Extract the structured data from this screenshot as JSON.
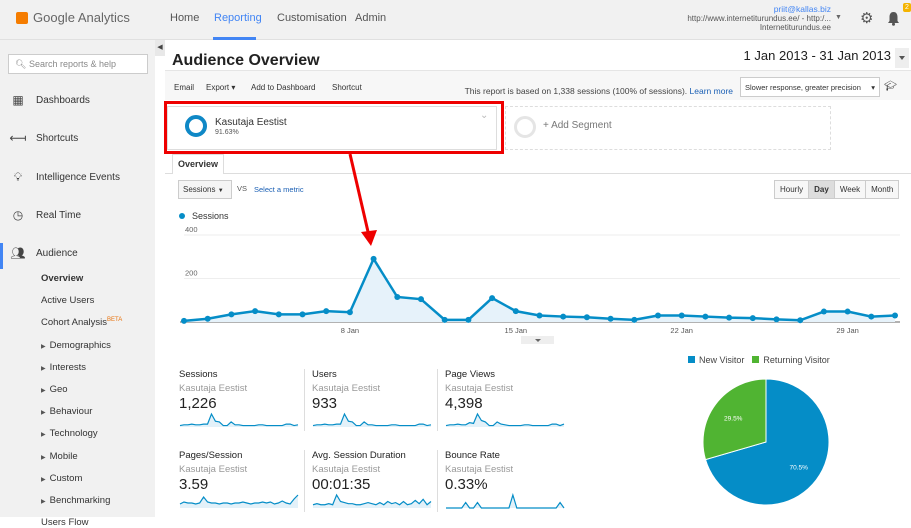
{
  "header": {
    "brand": "Google Analytics",
    "nav": [
      "Home",
      "Reporting",
      "Customisation",
      "Admin"
    ],
    "active_nav": "Reporting",
    "email": "priit@kallas.biz",
    "property": "http://www.internetiturundus.ee/ - http:/...",
    "view": "Internetiturundus.ee",
    "notifications": "2"
  },
  "sidebar": {
    "search_placeholder": "Search reports & help",
    "items": [
      {
        "label": "Dashboards",
        "icon": "grid-icon"
      },
      {
        "label": "Shortcuts",
        "icon": "shortcut-icon"
      },
      {
        "label": "Intelligence Events",
        "icon": "lightbulb-icon"
      },
      {
        "label": "Real Time",
        "icon": "clock-icon"
      },
      {
        "label": "Audience",
        "icon": "people-icon"
      }
    ],
    "audience_sub": [
      {
        "label": "Overview",
        "selected": true
      },
      {
        "label": "Active Users"
      },
      {
        "label": "Cohort Analysis",
        "badge": "BETA"
      },
      {
        "label": "Demographics",
        "expand": true
      },
      {
        "label": "Interests",
        "expand": true
      },
      {
        "label": "Geo",
        "expand": true
      },
      {
        "label": "Behaviour",
        "expand": true
      },
      {
        "label": "Technology",
        "expand": true
      },
      {
        "label": "Mobile",
        "expand": true
      },
      {
        "label": "Custom",
        "expand": true
      },
      {
        "label": "Benchmarking",
        "expand": true
      },
      {
        "label": "Users Flow"
      }
    ]
  },
  "page": {
    "title": "Audience Overview",
    "date_range": "1 Jan 2013 - 31 Jan 2013"
  },
  "toolbar": {
    "email": "Email",
    "export": "Export ▾",
    "add_dashboard": "Add to Dashboard",
    "shortcut": "Shortcut",
    "note": "This report is based on 1,338 sessions (100% of sessions).",
    "learn_more": "Learn more",
    "precision": "Slower response, greater precision"
  },
  "segments": {
    "active": {
      "name": "Kasutaja Eestist",
      "pct": "91.63%"
    },
    "add": "+ Add Segment"
  },
  "tab": "Overview",
  "controls": {
    "metric": "Sessions",
    "vs": "VS",
    "select_metric": "Select a metric",
    "granularity": [
      "Hourly",
      "Day",
      "Week",
      "Month"
    ],
    "active_granularity": "Day"
  },
  "chart_data": [
    {
      "type": "line",
      "series": [
        {
          "name": "Sessions",
          "color": "#058dc7",
          "values": [
            5,
            15,
            35,
            50,
            35,
            35,
            50,
            45,
            290,
            115,
            105,
            10,
            10,
            110,
            50,
            30,
            25,
            22,
            15,
            10,
            30,
            30,
            25,
            20,
            18,
            12,
            8,
            48,
            48,
            25,
            30
          ]
        }
      ],
      "x": [
        "1 Jan",
        "2 Jan",
        "3 Jan",
        "4 Jan",
        "5 Jan",
        "6 Jan",
        "7 Jan",
        "8 Jan",
        "9 Jan",
        "10 Jan",
        "11 Jan",
        "12 Jan",
        "13 Jan",
        "14 Jan",
        "15 Jan",
        "16 Jan",
        "17 Jan",
        "18 Jan",
        "19 Jan",
        "20 Jan",
        "21 Jan",
        "22 Jan",
        "23 Jan",
        "24 Jan",
        "25 Jan",
        "26 Jan",
        "27 Jan",
        "28 Jan",
        "29 Jan",
        "30 Jan",
        "31 Jan"
      ],
      "x_ticks": [
        "8 Jan",
        "15 Jan",
        "22 Jan",
        "29 Jan"
      ],
      "y_ticks": [
        "200",
        "400"
      ],
      "ylim": [
        0,
        400
      ],
      "legend": "top-left",
      "grid": true
    },
    {
      "type": "pie",
      "slices": [
        {
          "name": "New Visitor",
          "value": 70.5,
          "label": "70.5%",
          "color": "#058dc7"
        },
        {
          "name": "Returning Visitor",
          "value": 29.5,
          "label": "29.5%",
          "color": "#50b432"
        }
      ],
      "legend": "top"
    }
  ],
  "metrics": [
    {
      "title": "Sessions",
      "segment": "Kasutaja Eestist",
      "value": "1,226",
      "spark": [
        2,
        3,
        3,
        4,
        3,
        3,
        4,
        4,
        18,
        8,
        7,
        2,
        2,
        7,
        3,
        3,
        2,
        2,
        2,
        2,
        3,
        3,
        2,
        2,
        2,
        2,
        2,
        4,
        4,
        2,
        3
      ]
    },
    {
      "title": "Users",
      "segment": "Kasutaja Eestist",
      "value": "933",
      "spark": [
        2,
        3,
        3,
        4,
        3,
        3,
        4,
        4,
        18,
        8,
        7,
        2,
        2,
        7,
        3,
        3,
        2,
        2,
        2,
        2,
        3,
        3,
        2,
        2,
        2,
        2,
        2,
        4,
        4,
        2,
        3
      ]
    },
    {
      "title": "Page Views",
      "segment": "Kasutaja Eestist",
      "value": "4,398",
      "spark": [
        2,
        3,
        3,
        4,
        3,
        3,
        6,
        5,
        18,
        9,
        7,
        2,
        2,
        7,
        4,
        3,
        2,
        2,
        2,
        2,
        3,
        3,
        2,
        2,
        2,
        2,
        2,
        4,
        4,
        2,
        4
      ]
    },
    {
      "title": "Pages/Session",
      "segment": "Kasutaja Eestist",
      "value": "3.59",
      "spark": [
        4,
        6,
        5,
        5,
        4,
        5,
        11,
        6,
        5,
        5,
        4,
        5,
        5,
        4,
        5,
        5,
        6,
        5,
        4,
        5,
        5,
        6,
        5,
        6,
        4,
        5,
        7,
        5,
        4,
        9,
        13
      ]
    },
    {
      "title": "Avg. Session Duration",
      "segment": "Kasutaja Eestist",
      "value": "00:01:35",
      "spark": [
        3,
        4,
        3,
        3,
        4,
        3,
        12,
        6,
        5,
        4,
        4,
        3,
        3,
        4,
        5,
        4,
        3,
        5,
        3,
        6,
        4,
        5,
        3,
        6,
        3,
        4,
        7,
        4,
        8,
        3,
        6
      ]
    },
    {
      "title": "Bounce Rate",
      "segment": "Kasutaja Eestist",
      "value": "0.33%",
      "spark": [
        0,
        0,
        0,
        0,
        0,
        5,
        0,
        0,
        5,
        0,
        0,
        0,
        0,
        0,
        0,
        0,
        0,
        12,
        0,
        0,
        0,
        0,
        0,
        0,
        0,
        0,
        0,
        0,
        0,
        5,
        0
      ]
    }
  ]
}
